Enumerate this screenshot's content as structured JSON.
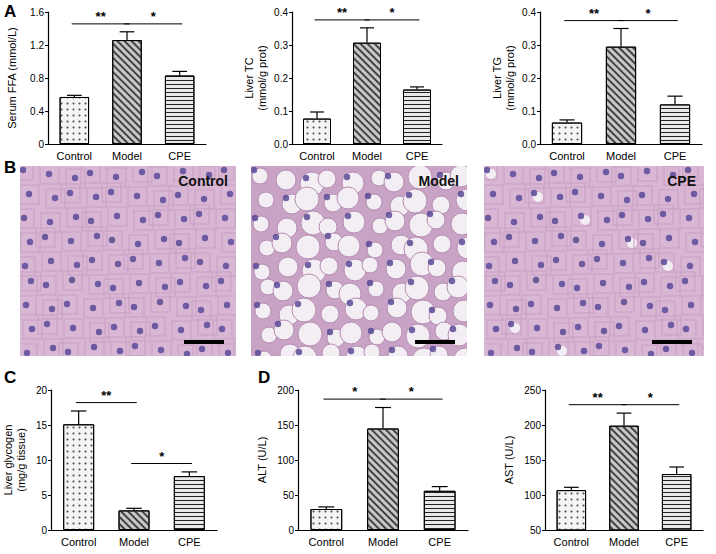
{
  "panel_labels": [
    "A",
    "B",
    "C",
    "D"
  ],
  "image_panel": {
    "labels": [
      "Control",
      "Model",
      "CPE"
    ]
  },
  "chart_data": [
    {
      "type": "bar",
      "y_label": "Serum FFA (mmol/L)",
      "categories": [
        "Control",
        "Model",
        "CPE"
      ],
      "values": [
        0.57,
        1.26,
        0.83
      ],
      "errors": [
        0.02,
        0.1,
        0.05
      ],
      "colors": [
        "#f4f4f4",
        "#c8c8c8",
        "#e8e8e8"
      ],
      "ylim": [
        0,
        1.6
      ],
      "yticks": [
        0,
        0.4,
        0.8,
        1.2,
        1.6
      ],
      "grid": false,
      "annotations": [
        {
          "from": "Control",
          "to": "Model",
          "text": "**"
        },
        {
          "from": "Model",
          "to": "CPE",
          "text": "*"
        }
      ]
    },
    {
      "type": "bar",
      "y_label": "Liver TC\n(mmol/g prot)",
      "categories": [
        "Control",
        "Model",
        "CPE"
      ],
      "values": [
        0.077,
        0.307,
        0.165
      ],
      "errors": [
        0.02,
        0.045,
        0.008
      ],
      "colors": [
        "#f4f4f4",
        "#c8c8c8",
        "#e8e8e8"
      ],
      "ylim": [
        0,
        0.4
      ],
      "yticks": [
        {
          "value": 0,
          "label": "0.0"
        },
        0.1,
        0.2,
        0.3,
        0.4
      ],
      "grid": false,
      "annotations": [
        {
          "from": "Control",
          "to": "Model",
          "text": "**"
        },
        {
          "from": "Model",
          "to": "CPE",
          "text": "*"
        }
      ]
    },
    {
      "type": "bar",
      "y_label": "Liver TG\n(mmol/g prot)",
      "categories": [
        "Control",
        "Model",
        "CPE"
      ],
      "values": [
        0.065,
        0.295,
        0.12
      ],
      "errors": [
        0.008,
        0.055,
        0.025
      ],
      "colors": [
        "#f4f4f4",
        "#c8c8c8",
        "#e8e8e8"
      ],
      "ylim": [
        0,
        0.4
      ],
      "yticks": [
        {
          "value": 0,
          "label": "0.0"
        },
        0.1,
        0.2,
        0.3,
        0.4
      ],
      "grid": false,
      "annotations": [
        {
          "from": "Control",
          "to": "Model",
          "text": "**"
        },
        {
          "from": "Model",
          "to": "CPE",
          "text": "*"
        }
      ]
    },
    {
      "type": "bar",
      "y_label": "Liver glycogen\n(mg/g tissue)",
      "categories": [
        "Control",
        "Model",
        "CPE"
      ],
      "values": [
        15.1,
        2.8,
        7.7
      ],
      "errors": [
        1.9,
        0.3,
        0.6
      ],
      "colors": [
        "#f4f4f4",
        "#c8c8c8",
        "#e8e8e8"
      ],
      "ylim": [
        0,
        20
      ],
      "yticks": [
        0,
        5,
        10,
        15,
        20
      ],
      "grid": false,
      "annotations": [
        {
          "from": "Control",
          "to": "Model",
          "text": "**"
        },
        {
          "from": "Model",
          "to": "CPE",
          "text": "*"
        }
      ]
    },
    {
      "type": "bar",
      "y_label": "ALT (U/L)",
      "categories": [
        "Control",
        "Model",
        "CPE"
      ],
      "values": [
        30,
        145,
        56
      ],
      "errors": [
        3,
        30,
        6
      ],
      "colors": [
        "#f4f4f4",
        "#c8c8c8",
        "#e8e8e8"
      ],
      "ylim": [
        0,
        200
      ],
      "yticks": [
        0,
        50,
        100,
        150,
        200
      ],
      "grid": false,
      "annotations": [
        {
          "from": "Control",
          "to": "Model",
          "text": "*"
        },
        {
          "from": "Model",
          "to": "CPE",
          "text": "*"
        }
      ]
    },
    {
      "type": "bar",
      "y_label": "AST (U/L)",
      "categories": [
        "Control",
        "Model",
        "CPE"
      ],
      "values": [
        107,
        199,
        130
      ],
      "errors": [
        4,
        18,
        10
      ],
      "colors": [
        "#f4f4f4",
        "#c8c8c8",
        "#e8e8e8"
      ],
      "ylim": [
        50,
        250
      ],
      "yticks": [
        50,
        100,
        150,
        200,
        250
      ],
      "grid": false,
      "annotations": [
        {
          "from": "Control",
          "to": "Model",
          "text": "**"
        },
        {
          "from": "Model",
          "to": "CPE",
          "text": "*"
        }
      ]
    }
  ]
}
